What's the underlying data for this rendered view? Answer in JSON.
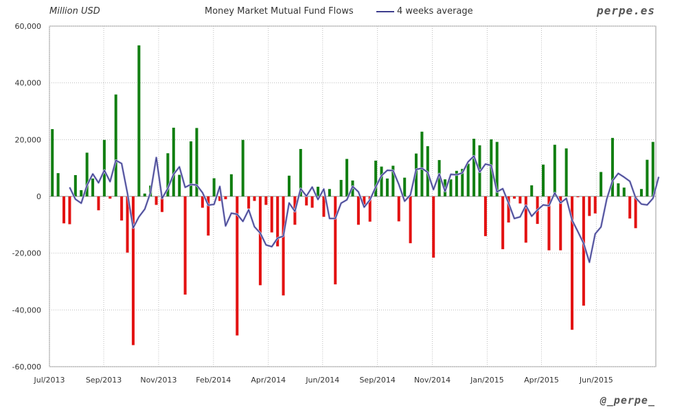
{
  "header": {
    "ylabel": "Million USD",
    "title": "Money Market Mutual Fund Flows",
    "legend_label": "4 weeks average",
    "brand": "perpe.es"
  },
  "footer": {
    "handle": "@_perpe_"
  },
  "chart_data": {
    "type": "bar",
    "title": "Money Market Mutual Fund Flows",
    "ylabel": "Million USD",
    "ylim": [
      -60000,
      60000
    ],
    "yticks": [
      60000,
      40000,
      20000,
      0,
      -20000,
      -40000,
      -60000
    ],
    "ytick_labels": [
      "60,000",
      "40,000",
      "20,000",
      "0",
      "-20,000",
      "-40,000",
      "-60,000"
    ],
    "xtick_labels": [
      "Jul/2013",
      "Sep/2013",
      "Nov/2013",
      "Feb/2014",
      "Apr/2014",
      "Jun/2014",
      "Sep/2014",
      "Nov/2014",
      "Jan/2015",
      "Apr/2015",
      "Jun/2015"
    ],
    "xtick_weeks": [
      0,
      9.4,
      18.9,
      28.4,
      37.9,
      47.3,
      56.8,
      66.3,
      75.8,
      85.2,
      94.7
    ],
    "grid": true,
    "legend": "top-center",
    "colors": {
      "positive": "#127f12",
      "negative": "#e31212",
      "average": "#3c3c8c",
      "grid": "#bbbbbb"
    },
    "series": [
      {
        "name": "weekly flows",
        "kind": "bar",
        "values": [
          23700,
          8200,
          -9500,
          -9800,
          7500,
          2200,
          15400,
          6300,
          -4900,
          19900,
          -800,
          35900,
          -8500,
          -19800,
          -52400,
          53200,
          1000,
          3800,
          -3000,
          -5500,
          15200,
          24200,
          7600,
          -34600,
          19400,
          24100,
          -4000,
          -13800,
          6400,
          -1600,
          -1000,
          7800,
          -49000,
          19900,
          -4300,
          -1600,
          -31300,
          -3000,
          -12700,
          -17600,
          -34900,
          7300,
          -10000,
          16700,
          -3200,
          -4000,
          3400,
          -7200,
          2600,
          -31000,
          5800,
          13200,
          5600,
          -10000,
          -3000,
          -8900,
          12600,
          10500,
          6300,
          10800,
          -8800,
          6600,
          -16500,
          15100,
          22800,
          17700,
          -21600,
          12800,
          6000,
          6000,
          9000,
          9700,
          11500,
          20300,
          18000,
          -14000,
          20100,
          19200,
          -18600,
          -9200,
          -800,
          -2500,
          -16300,
          3900,
          -9700,
          11200,
          -19000,
          18200,
          -19000,
          16900,
          -47000,
          -300,
          -38500,
          -6900,
          -6000,
          8600,
          0,
          20600,
          4600,
          3100,
          -7800,
          -11200,
          2600,
          12900,
          19200
        ]
      },
      {
        "name": "4 weeks average",
        "kind": "line",
        "values": [
          null,
          null,
          null,
          3200,
          -1000,
          -2400,
          3900,
          7900,
          4800,
          9200,
          5200,
          12700,
          11600,
          1200,
          -11100,
          -7200,
          -4500,
          1400,
          13700,
          -700,
          2800,
          7800,
          10400,
          3200,
          4200,
          4000,
          1300,
          -3100,
          -2800,
          3500,
          -10400,
          -5900,
          -6300,
          -8800,
          -4700,
          -10700,
          -12900,
          -17100,
          -17700,
          -14700,
          -14000,
          -2300,
          -5300,
          2700,
          100,
          3300,
          -1100,
          2600,
          -7800,
          -7800,
          -2400,
          -1200,
          3500,
          1600,
          -3800,
          -1200,
          3300,
          7300,
          9200,
          9100,
          4200,
          -1700,
          500,
          9500,
          9900,
          8500,
          2400,
          7900,
          1800,
          7800,
          7600,
          8300,
          12200,
          14200,
          8600,
          11400,
          10900,
          1600,
          2700,
          -2400,
          -7800,
          -7200,
          -3200,
          -7000,
          -4800,
          -3000,
          -3300,
          1200,
          -2300,
          -700,
          -8400,
          -12400,
          -16600,
          -23200,
          -13200,
          -10800,
          -1000,
          5500,
          8100,
          6800,
          5300,
          -500,
          -2700,
          -3000,
          -700,
          6900
        ]
      }
    ]
  }
}
